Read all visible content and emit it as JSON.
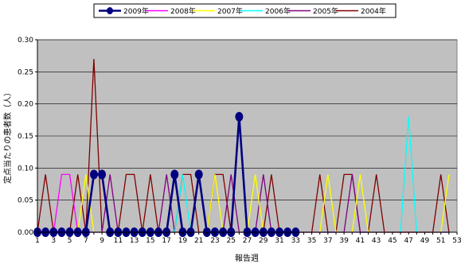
{
  "chart_data": {
    "type": "line",
    "xlabel": "報告週",
    "ylabel": "定点当たりの患者数（人）",
    "ylim": [
      0,
      0.3
    ],
    "yticks": [
      0,
      0.05,
      0.1,
      0.15,
      0.2,
      0.25,
      0.3
    ],
    "ytick_labels": [
      "0.00",
      "0.05",
      "0.10",
      "0.15",
      "0.20",
      "0.25",
      "0.30"
    ],
    "xlim": [
      1,
      53
    ],
    "xticks": [
      1,
      3,
      5,
      7,
      9,
      11,
      13,
      15,
      17,
      19,
      21,
      23,
      25,
      27,
      29,
      31,
      33,
      35,
      37,
      39,
      41,
      43,
      45,
      47,
      49,
      51,
      53
    ],
    "grid": true,
    "legend_position": "top",
    "series": [
      {
        "name": "2009年",
        "color": "#000080",
        "values": [
          0,
          0,
          0,
          0,
          0,
          0,
          0,
          0.09,
          0.09,
          0,
          0,
          0,
          0,
          0,
          0,
          0,
          0,
          0.09,
          0,
          0,
          0.09,
          0,
          0,
          0,
          0,
          0.18,
          0,
          0,
          0,
          0,
          0,
          0,
          0
        ],
        "markers": true
      },
      {
        "name": "2008年",
        "color": "#ff00ff",
        "values": [
          0,
          0,
          0,
          0.09,
          0.09,
          0,
          0,
          0,
          0,
          0,
          0,
          0,
          0,
          0,
          0,
          0,
          0,
          0,
          0,
          0,
          0,
          0,
          0,
          0,
          0,
          0,
          0,
          0,
          0,
          0,
          0,
          0,
          0,
          0,
          0,
          0,
          0,
          0,
          0,
          0,
          0,
          0,
          0,
          0,
          0,
          0,
          0,
          0,
          0,
          0,
          0,
          0
        ],
        "markers": false
      },
      {
        "name": "2007年",
        "color": "#ffff00",
        "values": [
          0,
          0,
          0,
          0,
          0,
          0,
          0.09,
          0,
          0,
          0,
          0,
          0,
          0,
          0,
          0,
          0,
          0,
          0,
          0,
          0,
          0,
          0,
          0.09,
          0,
          0,
          0,
          0,
          0.09,
          0,
          0,
          0,
          0,
          0,
          0,
          0,
          0,
          0.09,
          0,
          0,
          0,
          0.09,
          0,
          0,
          0,
          0,
          0,
          0,
          0,
          0,
          0,
          0,
          0.09
        ],
        "markers": false
      },
      {
        "name": "2006年",
        "color": "#00ffff",
        "values": [
          0,
          0,
          0,
          0,
          0,
          0,
          0,
          0,
          0,
          0,
          0,
          0,
          0,
          0,
          0,
          0,
          0,
          0,
          0.09,
          0,
          0,
          0,
          0,
          0,
          0,
          0,
          0,
          0,
          0,
          0,
          0,
          0,
          0,
          0,
          0,
          0,
          0,
          0,
          0,
          0,
          0,
          0,
          0,
          0,
          0,
          0,
          0.18,
          0,
          0,
          0,
          0,
          0
        ],
        "markers": false
      },
      {
        "name": "2005年",
        "color": "#800080",
        "values": [
          0,
          0,
          0,
          0,
          0,
          0,
          0,
          0,
          0,
          0.09,
          0,
          0,
          0,
          0,
          0,
          0,
          0.09,
          0,
          0,
          0,
          0,
          0,
          0,
          0,
          0.09,
          0,
          0,
          0,
          0.09,
          0,
          0,
          0,
          0,
          0,
          0,
          0,
          0,
          0,
          0,
          0.09,
          0,
          0,
          0,
          0,
          0,
          0,
          0,
          0,
          0,
          0,
          0,
          0
        ],
        "markers": false
      },
      {
        "name": "2004年",
        "color": "#800000",
        "values": [
          0,
          0.09,
          0,
          0,
          0,
          0.09,
          0,
          0.27,
          0,
          0,
          0,
          0.09,
          0.09,
          0,
          0.09,
          0,
          0,
          0,
          0.09,
          0.09,
          0,
          0,
          0.09,
          0.09,
          0,
          0.18,
          0,
          0,
          0,
          0.09,
          0,
          0,
          0,
          0,
          0,
          0.09,
          0,
          0,
          0.09,
          0.09,
          0,
          0,
          0.09,
          0,
          0,
          0,
          0,
          0,
          0,
          0,
          0.09,
          0
        ],
        "markers": false
      }
    ]
  }
}
